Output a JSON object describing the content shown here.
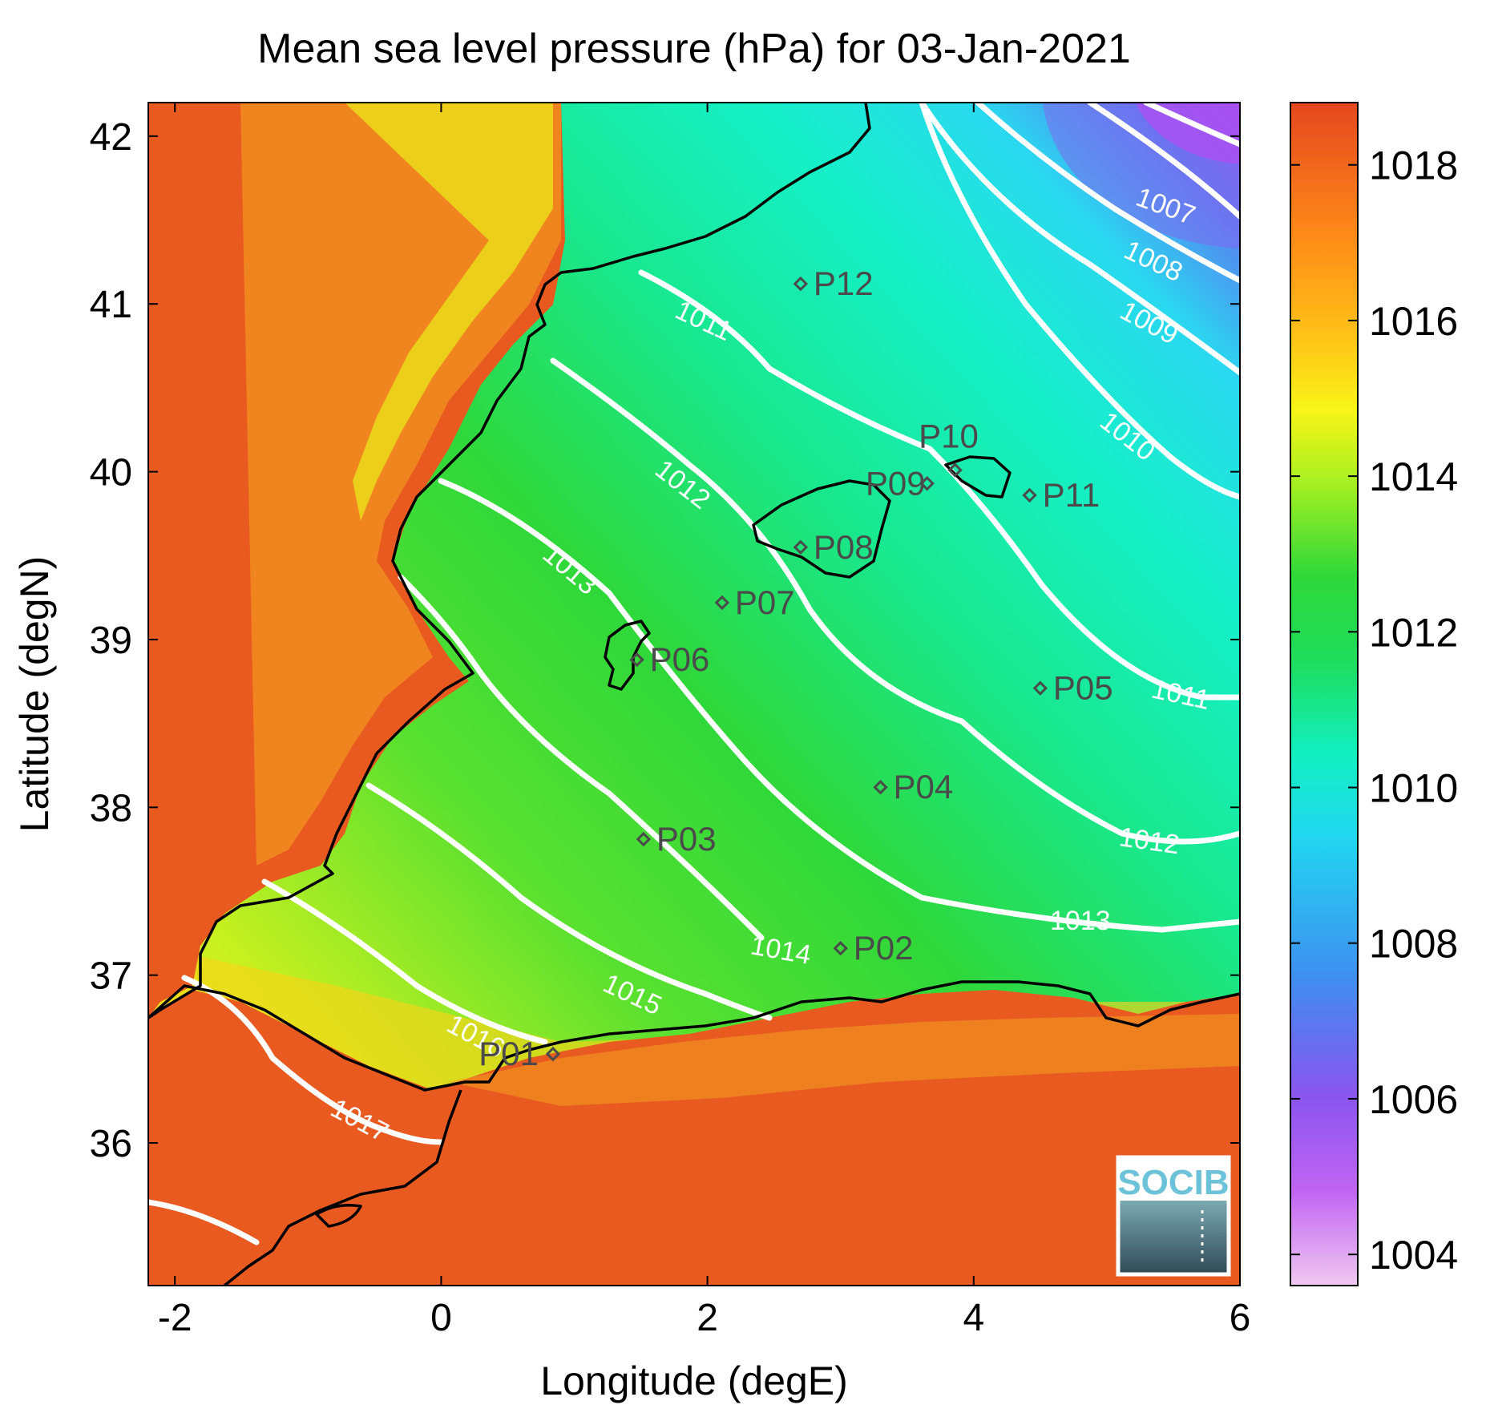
{
  "title": "Mean sea level pressure (hPa) for 03-Jan-2021",
  "xlabel": "Longitude (degE)",
  "ylabel": "Latitude (degN)",
  "x_ticks": [
    "-2",
    "0",
    "2",
    "4",
    "6"
  ],
  "y_ticks": [
    "42",
    "41",
    "40",
    "39",
    "38",
    "37",
    "36"
  ],
  "colorbar": {
    "ticks": [
      "1018",
      "1016",
      "1014",
      "1012",
      "1010",
      "1008",
      "1006",
      "1004"
    ]
  },
  "logo_text": "SOCIB",
  "contour_labels": [
    "1007",
    "1008",
    "1009",
    "1010",
    "1011",
    "1012",
    "1013",
    "1014",
    "1015",
    "1016",
    "1017",
    "1011",
    "1012",
    "1013"
  ],
  "stations": [
    {
      "id": "P01",
      "lon": 0.84,
      "lat": 36.53
    },
    {
      "id": "P02",
      "lon": 3.0,
      "lat": 37.16
    },
    {
      "id": "P03",
      "lon": 1.52,
      "lat": 37.81
    },
    {
      "id": "P04",
      "lon": 3.3,
      "lat": 38.12
    },
    {
      "id": "P05",
      "lon": 4.5,
      "lat": 38.71
    },
    {
      "id": "P06",
      "lon": 1.47,
      "lat": 38.88
    },
    {
      "id": "P07",
      "lon": 2.11,
      "lat": 39.22
    },
    {
      "id": "P08",
      "lon": 2.7,
      "lat": 39.55
    },
    {
      "id": "P09",
      "lon": 3.65,
      "lat": 39.93
    },
    {
      "id": "P10",
      "lon": 3.86,
      "lat": 40.01
    },
    {
      "id": "P11",
      "lon": 4.42,
      "lat": 39.86
    },
    {
      "id": "P12",
      "lon": 2.7,
      "lat": 41.12
    }
  ],
  "chart_data": {
    "type": "heatmap",
    "title": "Mean sea level pressure (hPa) for 03-Jan-2021",
    "xlabel": "Longitude (degE)",
    "ylabel": "Latitude (degN)",
    "xlim": [
      -2.2,
      6
    ],
    "ylim": [
      35.15,
      42.2
    ],
    "colorbar_range": [
      1003.6,
      1018.8
    ],
    "colormap": [
      "#f0c8f0",
      "#b24cf2",
      "#7a5ff0",
      "#3f8ef0",
      "#21d7f0",
      "#12f0c0",
      "#1fdc5a",
      "#2fd83a",
      "#a8f020",
      "#f8f518",
      "#ffc418",
      "#ff8f18",
      "#f25222",
      "#e5471f"
    ],
    "contour_levels": [
      1007,
      1008,
      1009,
      1010,
      1011,
      1012,
      1013,
      1014,
      1015,
      1016,
      1017
    ],
    "contour_color": "#ffffff",
    "coastline_color": "#000000"
  }
}
